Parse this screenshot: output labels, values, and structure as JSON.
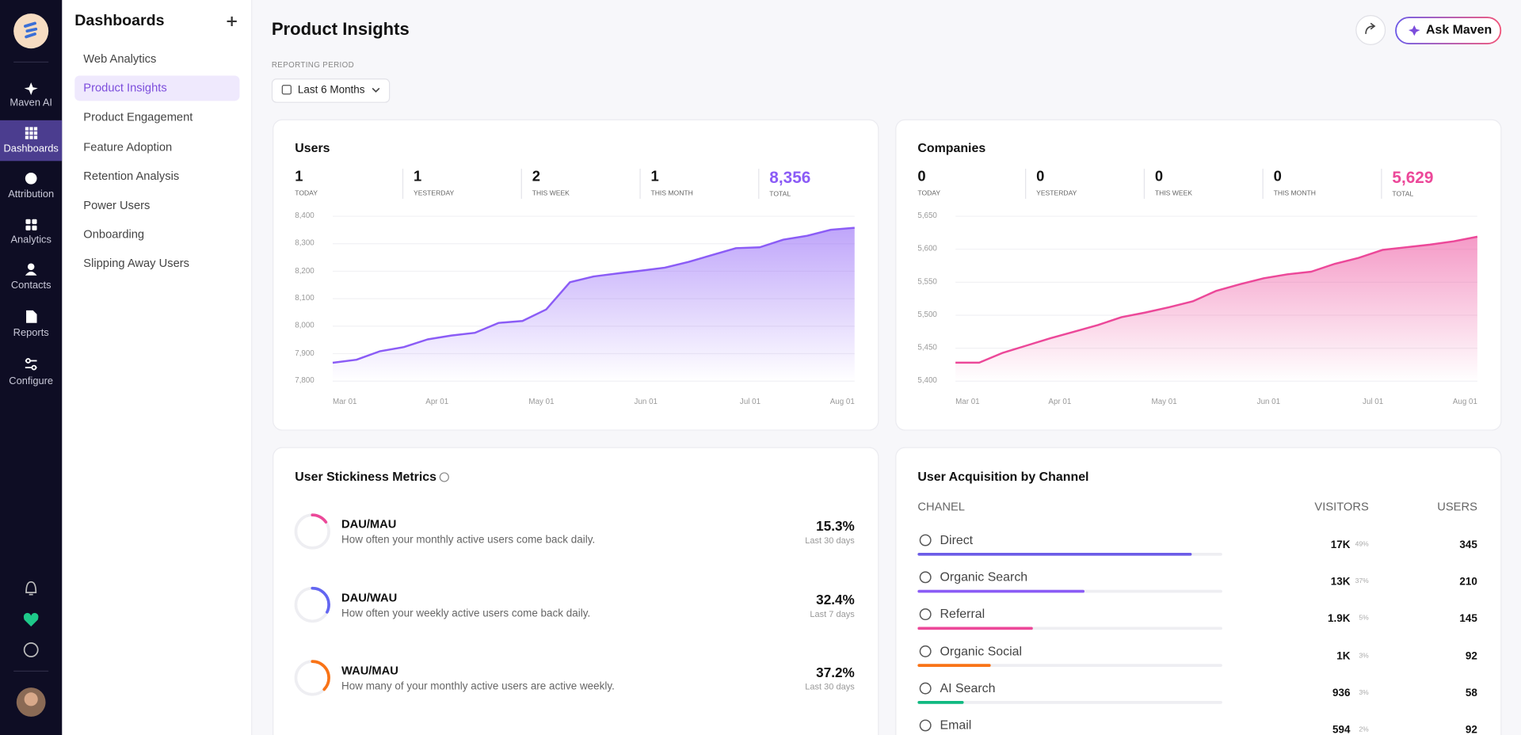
{
  "nav": {
    "items": [
      "Maven AI",
      "Dashboards",
      "Attribution",
      "Analytics",
      "Contacts",
      "Reports",
      "Configure"
    ]
  },
  "sidebar": {
    "title": "Dashboards",
    "items": [
      "Web Analytics",
      "Product Insights",
      "Product Engagement",
      "Feature Adoption",
      "Retention Analysis",
      "Power Users",
      "Onboarding",
      "Slipping Away Users"
    ]
  },
  "header": {
    "title": "Product Insights",
    "period_label": "REPORTING PERIOD",
    "period": "Last 6 Months",
    "ask_button": "Ask Maven"
  },
  "users_card": {
    "title": "Users",
    "stats": [
      {
        "value": "1",
        "label": "TODAY"
      },
      {
        "value": "1",
        "label": "YESTERDAY"
      },
      {
        "value": "2",
        "label": "THIS WEEK"
      },
      {
        "value": "1",
        "label": "THIS MONTH"
      },
      {
        "value": "8,356",
        "label": "TOTAL"
      }
    ],
    "chart": {
      "type": "area",
      "color": "#8b5cf6",
      "xtick_labels": [
        "Mar 01",
        "Apr 01",
        "May 01",
        "Jun 01",
        "Jul 01",
        "Aug 01"
      ],
      "values": [
        7867,
        7878,
        7909,
        7924,
        7952,
        7966,
        7976,
        8012,
        8019,
        8061,
        8160,
        8181,
        8192,
        8202,
        8213,
        8234,
        8259,
        8284,
        8287,
        8315,
        8329,
        8351,
        8358
      ],
      "ylim": [
        7800,
        8400
      ],
      "yticks": [
        {
          "value": 7800,
          "label": "7,800"
        },
        {
          "value": 7900,
          "label": "7,900"
        },
        {
          "value": 8000,
          "label": "8,000"
        },
        {
          "value": 8100,
          "label": "8,100"
        },
        {
          "value": 8200,
          "label": "8,200"
        },
        {
          "value": 8300,
          "label": "8,300"
        },
        {
          "value": 8400,
          "label": "8,400"
        }
      ],
      "grid": true
    }
  },
  "companies_card": {
    "title": "Companies",
    "stats": [
      {
        "value": "0",
        "label": "TODAY"
      },
      {
        "value": "0",
        "label": "YESTERDAY"
      },
      {
        "value": "0",
        "label": "THIS WEEK"
      },
      {
        "value": "0",
        "label": "THIS MONTH"
      },
      {
        "value": "5,629",
        "label": "TOTAL"
      }
    ],
    "chart": {
      "type": "area",
      "color": "#ec4899",
      "xtick_labels": [
        "Mar 01",
        "Apr 01",
        "May 01",
        "Jun 01",
        "Jul 01",
        "Aug 01"
      ],
      "values": [
        5428,
        5428,
        5443,
        5454,
        5465,
        5475,
        5485,
        5497,
        5504,
        5512,
        5521,
        5537,
        5547,
        5556,
        5562,
        5566,
        5578,
        5587,
        5599,
        5603,
        5607,
        5612,
        5619
      ],
      "ylim": [
        5400,
        5650
      ],
      "yticks": [
        {
          "value": 5400,
          "label": "5,400"
        },
        {
          "value": 5450,
          "label": "5,450"
        },
        {
          "value": 5500,
          "label": "5,500"
        },
        {
          "value": 5550,
          "label": "5,550"
        },
        {
          "value": 5600,
          "label": "5,600"
        },
        {
          "value": 5650,
          "label": "5,650"
        }
      ],
      "grid": true
    }
  },
  "stickiness": {
    "title": "User Stickiness Metrics",
    "metrics": [
      {
        "name": "DAU/MAU",
        "description": "How often your monthly active users come back daily.",
        "value": 15.3,
        "value_label": "15.3%",
        "period": "Last 30 days",
        "color": "#ec4899"
      },
      {
        "name": "DAU/WAU",
        "description": "How often your weekly active users come back daily.",
        "value": 32.4,
        "value_label": "32.4%",
        "period": "Last 7 days",
        "color": "#6366f1"
      },
      {
        "name": "WAU/MAU",
        "description": "How many of your monthly active users are active weekly.",
        "value": 37.2,
        "value_label": "37.2%",
        "period": "Last 30 days",
        "color": "#f97316"
      }
    ]
  },
  "acquisition": {
    "title": "User Acquisition by Channel",
    "columns": [
      "CHANEL",
      "VISITORS",
      "USERS"
    ],
    "rows": [
      {
        "channel": "Direct",
        "visitors": "17K",
        "share": "49%",
        "users": 345,
        "color": "#6c5ce7"
      },
      {
        "channel": "Organic Search",
        "visitors": "13K",
        "share": "37%",
        "users": 210,
        "color": "#8b5cf6"
      },
      {
        "channel": "Referral",
        "visitors": "1.9K",
        "share": "5%",
        "users": 145,
        "color": "#ec4899"
      },
      {
        "channel": "Organic Social",
        "visitors": "1K",
        "share": "3%",
        "users": 92,
        "color": "#f97316"
      },
      {
        "channel": "AI Search",
        "visitors": "936",
        "share": "3%",
        "users": 58,
        "color": "#10b981"
      },
      {
        "channel": "Email",
        "visitors": "594",
        "share": "2%",
        "users": 92,
        "color": "#3b82f6"
      }
    ]
  }
}
